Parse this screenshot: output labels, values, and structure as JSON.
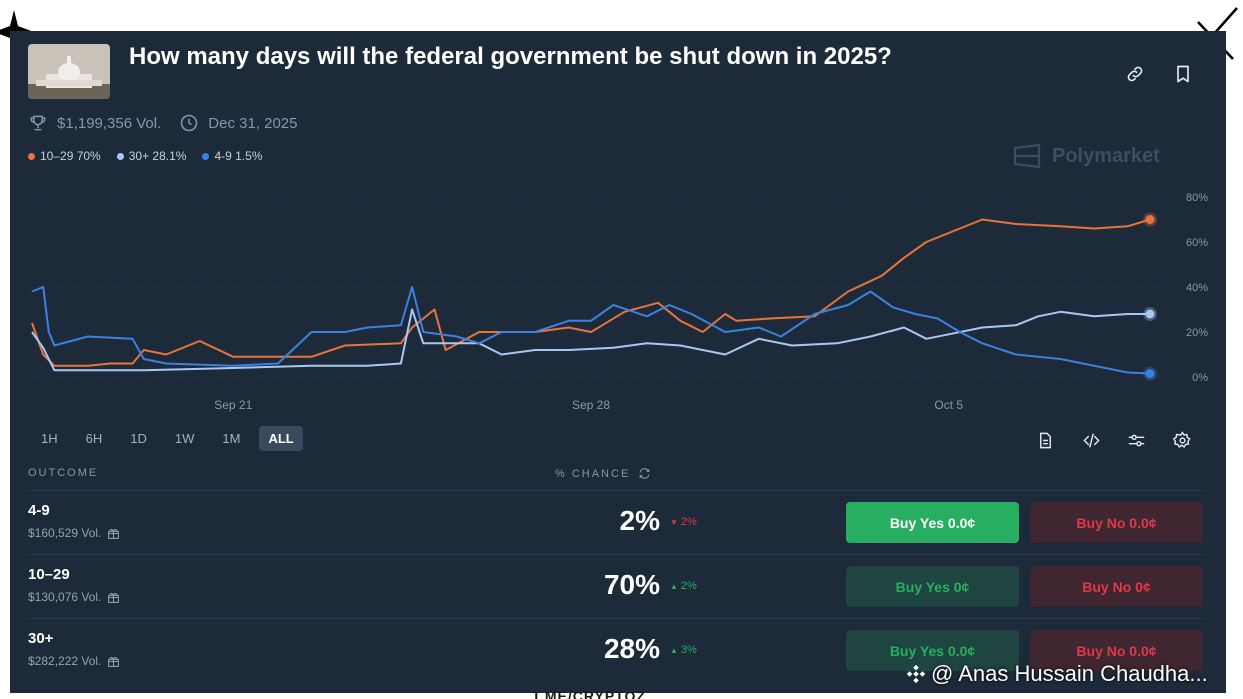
{
  "market": {
    "title": "How many days will the federal government be shut down in 2025?",
    "volume": "$1,199,356 Vol.",
    "end_date": "Dec 31, 2025",
    "brand": "Polymarket",
    "image": "us-capitol-thumbnail"
  },
  "legend": [
    {
      "label": "10–29 70%",
      "color": "#e8743b"
    },
    {
      "label": "30+ 28.1%",
      "color": "#a8c8f0"
    },
    {
      "label": "4-9 1.5%",
      "color": "#3b82e0"
    }
  ],
  "time_ranges": [
    "1H",
    "6H",
    "1D",
    "1W",
    "1M",
    "ALL"
  ],
  "active_range": "ALL",
  "table": {
    "outcome_header": "OUTCOME",
    "chance_header": "% CHANCE",
    "rows": [
      {
        "name": "4-9",
        "volume": "$160,529 Vol.",
        "chance": "2%",
        "change": "2%",
        "direction": "down",
        "buy_yes": "Buy Yes 0.0¢",
        "buy_no": "Buy No 0.0¢",
        "yes_active": true
      },
      {
        "name": "10–29",
        "volume": "$130,076 Vol.",
        "chance": "70%",
        "change": "2%",
        "direction": "up",
        "buy_yes": "Buy Yes 0¢",
        "buy_no": "Buy No 0¢",
        "yes_active": false
      },
      {
        "name": "30+",
        "volume": "$282,222 Vol.",
        "chance": "28%",
        "change": "3%",
        "direction": "up",
        "buy_yes": "Buy Yes 0.0¢",
        "buy_no": "Buy No 0.0¢",
        "yes_active": false
      }
    ]
  },
  "colors": {
    "up": "#27ae60",
    "down": "#e0394a"
  },
  "watermark": "@ Anas Hussain Chaudha...",
  "bottom_stamp": "T.ME/CRYPTOZ",
  "chart_data": {
    "type": "line",
    "title": "",
    "xlabel": "",
    "ylabel": "",
    "ylim": [
      0,
      80
    ],
    "yticks": [
      0,
      20,
      40,
      60,
      80
    ],
    "ytick_labels": [
      "0%",
      "20%",
      "40%",
      "60%",
      "80%"
    ],
    "xticks": [
      {
        "label": "Sep 21",
        "t": 0.18
      },
      {
        "label": "Sep 28",
        "t": 0.5
      },
      {
        "label": "Oct 5",
        "t": 0.82
      }
    ],
    "series": [
      {
        "name": "10–29",
        "color": "#e8743b",
        "end_marker": true,
        "points": [
          [
            0,
            24
          ],
          [
            0.01,
            10
          ],
          [
            0.02,
            5
          ],
          [
            0.05,
            5
          ],
          [
            0.07,
            6
          ],
          [
            0.09,
            6
          ],
          [
            0.1,
            12
          ],
          [
            0.12,
            10
          ],
          [
            0.15,
            16
          ],
          [
            0.18,
            9
          ],
          [
            0.25,
            9
          ],
          [
            0.28,
            14
          ],
          [
            0.33,
            15
          ],
          [
            0.34,
            22
          ],
          [
            0.36,
            30
          ],
          [
            0.37,
            12
          ],
          [
            0.4,
            20
          ],
          [
            0.45,
            20
          ],
          [
            0.48,
            22
          ],
          [
            0.5,
            20
          ],
          [
            0.51,
            23
          ],
          [
            0.53,
            29
          ],
          [
            0.56,
            33
          ],
          [
            0.58,
            25
          ],
          [
            0.6,
            20
          ],
          [
            0.62,
            28
          ],
          [
            0.63,
            25
          ],
          [
            0.66,
            26
          ],
          [
            0.7,
            27
          ],
          [
            0.73,
            38
          ],
          [
            0.76,
            45
          ],
          [
            0.78,
            53
          ],
          [
            0.8,
            60
          ],
          [
            0.83,
            66
          ],
          [
            0.85,
            70
          ],
          [
            0.88,
            68
          ],
          [
            0.92,
            67
          ],
          [
            0.95,
            66
          ],
          [
            0.98,
            67
          ],
          [
            1,
            70
          ]
        ]
      },
      {
        "name": "30+",
        "color": "#a8c8f0",
        "end_marker": true,
        "points": [
          [
            0,
            20
          ],
          [
            0.01,
            13
          ],
          [
            0.02,
            3
          ],
          [
            0.05,
            3
          ],
          [
            0.1,
            3
          ],
          [
            0.18,
            4
          ],
          [
            0.25,
            5
          ],
          [
            0.3,
            5
          ],
          [
            0.33,
            6
          ],
          [
            0.34,
            30
          ],
          [
            0.35,
            15
          ],
          [
            0.4,
            15
          ],
          [
            0.42,
            10
          ],
          [
            0.45,
            12
          ],
          [
            0.48,
            12
          ],
          [
            0.52,
            13
          ],
          [
            0.55,
            15
          ],
          [
            0.58,
            14
          ],
          [
            0.62,
            10
          ],
          [
            0.65,
            17
          ],
          [
            0.68,
            14
          ],
          [
            0.72,
            15
          ],
          [
            0.75,
            18
          ],
          [
            0.78,
            22
          ],
          [
            0.8,
            17
          ],
          [
            0.82,
            19
          ],
          [
            0.85,
            22
          ],
          [
            0.88,
            23
          ],
          [
            0.9,
            27
          ],
          [
            0.92,
            29
          ],
          [
            0.95,
            27
          ],
          [
            0.98,
            28
          ],
          [
            1,
            28
          ]
        ]
      },
      {
        "name": "4-9",
        "color": "#3b82e0",
        "end_marker": true,
        "points": [
          [
            0,
            38
          ],
          [
            0.01,
            40
          ],
          [
            0.015,
            20
          ],
          [
            0.02,
            14
          ],
          [
            0.05,
            18
          ],
          [
            0.09,
            17
          ],
          [
            0.1,
            8
          ],
          [
            0.12,
            6
          ],
          [
            0.18,
            5
          ],
          [
            0.22,
            6
          ],
          [
            0.25,
            20
          ],
          [
            0.28,
            20
          ],
          [
            0.3,
            22
          ],
          [
            0.33,
            23
          ],
          [
            0.34,
            40
          ],
          [
            0.35,
            20
          ],
          [
            0.38,
            18
          ],
          [
            0.4,
            15
          ],
          [
            0.42,
            20
          ],
          [
            0.45,
            20
          ],
          [
            0.48,
            25
          ],
          [
            0.5,
            25
          ],
          [
            0.52,
            32
          ],
          [
            0.55,
            27
          ],
          [
            0.57,
            32
          ],
          [
            0.59,
            28
          ],
          [
            0.62,
            20
          ],
          [
            0.65,
            22
          ],
          [
            0.67,
            18
          ],
          [
            0.7,
            28
          ],
          [
            0.73,
            32
          ],
          [
            0.75,
            38
          ],
          [
            0.77,
            31
          ],
          [
            0.79,
            28
          ],
          [
            0.81,
            26
          ],
          [
            0.83,
            20
          ],
          [
            0.85,
            15
          ],
          [
            0.88,
            10
          ],
          [
            0.92,
            8
          ],
          [
            0.96,
            4
          ],
          [
            0.98,
            2
          ],
          [
            1,
            1.5
          ]
        ]
      }
    ]
  }
}
